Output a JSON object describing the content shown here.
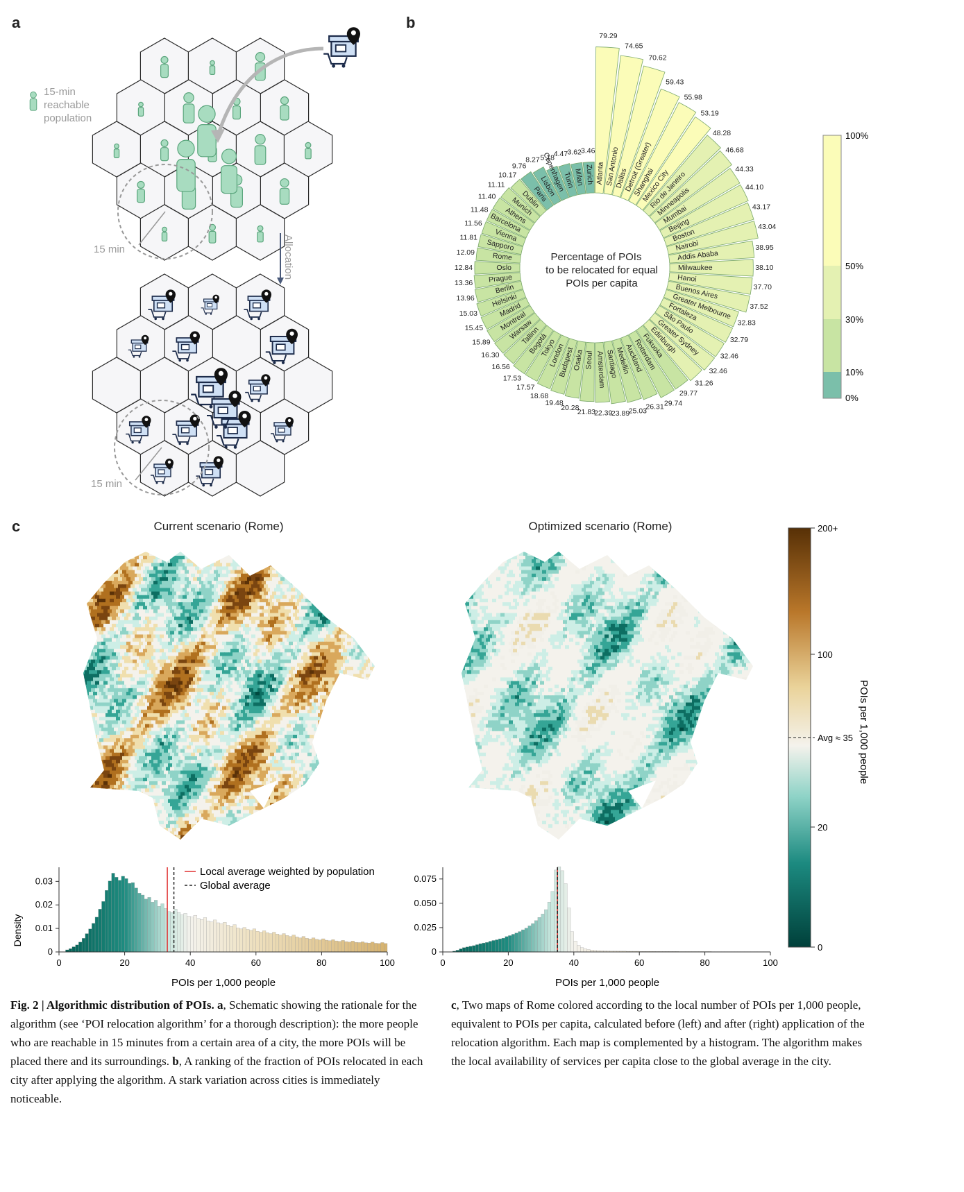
{
  "panel_labels": {
    "a": "a",
    "b": "b",
    "c": "c"
  },
  "panel_a": {
    "legend_label": [
      "15-min",
      "reachable",
      "population"
    ],
    "time_label_top": "15 min",
    "time_label_bottom": "15 min",
    "arrow_label": "Allocation",
    "colors": {
      "person": "#a8dcc0",
      "person_stroke": "#5aa57c",
      "store": "#cfe0f5",
      "store_stroke": "#1c2b4a",
      "hex_fill": "#f6f6f8",
      "hex_stroke": "#2a2a2a"
    }
  },
  "panel_b": {
    "center_text": [
      "Percentage of POIs",
      "to be relocated for equal",
      "POIs per capita"
    ],
    "colorbar_labels": [
      "100%",
      "50%",
      "30%",
      "10%",
      "0%"
    ],
    "colors": {
      "band_0_10": "#7bbfaa",
      "band_10_30": "#c8e4a3",
      "band_30_50": "#e4f1b2",
      "band_50_100": "#fbfcb8"
    }
  },
  "chart_data": [
    {
      "type": "bar",
      "layout": "circular",
      "categories": [
        "Atlanta",
        "San Antonio",
        "Dallas",
        "Detroit (Greater)",
        "Shanghai",
        "Mexico City",
        "Rio de Janeiro",
        "Minneapolis",
        "Mumbai",
        "Beijing",
        "Boston",
        "Nairobi",
        "Addis Ababa",
        "Milwaukee",
        "Hanoi",
        "Buenos Aires",
        "Greater Melbourne",
        "Fortaleza",
        "São Paulo",
        "Greater Sydney",
        "Edinburgh",
        "Fukuoka",
        "Rotterdam",
        "Auckland",
        "Medellín",
        "Santiago",
        "Amsterdam",
        "Seoul",
        "Osaka",
        "Budapest",
        "London",
        "Tokyo",
        "Bogotá",
        "Tallinn",
        "Warsaw",
        "Montreal",
        "Madrid",
        "Helsinki",
        "Berlin",
        "Prague",
        "Oslo",
        "Rome",
        "Sapporo",
        "Vienna",
        "Barcelona",
        "Athens",
        "Munich",
        "Dublin",
        "Paris",
        "Lisbon",
        "Copenhagen",
        "Turin",
        "Milan",
        "Zurich"
      ],
      "values": [
        79.29,
        74.65,
        70.62,
        59.43,
        55.98,
        53.19,
        48.28,
        46.68,
        44.33,
        44.1,
        43.17,
        43.04,
        38.95,
        38.1,
        37.7,
        37.52,
        32.83,
        32.79,
        32.46,
        32.46,
        31.26,
        29.77,
        29.74,
        26.31,
        25.03,
        23.89,
        22.39,
        21.83,
        20.28,
        19.48,
        18.68,
        17.57,
        17.53,
        16.56,
        16.3,
        15.89,
        15.45,
        15.03,
        13.96,
        13.36,
        12.84,
        12.09,
        11.81,
        11.56,
        11.48,
        11.4,
        11.11,
        10.17,
        9.76,
        8.27,
        5.18,
        4.47,
        3.62,
        3.46
      ],
      "title": "Percentage of POIs to be relocated for equal POIs per capita",
      "color_scale": {
        "ticks": [
          "0%",
          "10%",
          "30%",
          "50%",
          "100%"
        ]
      }
    },
    {
      "type": "heatmap",
      "title": "Current scenario (Rome)",
      "colorbar_label": "POIs per 1,000 people",
      "colorbar_ticks": [
        "0",
        "20",
        "Avg ≈ 35",
        "100",
        "200+"
      ]
    },
    {
      "type": "heatmap",
      "title": "Optimized scenario (Rome)",
      "colorbar_label": "POIs per 1,000 people",
      "colorbar_ticks": [
        "0",
        "20",
        "Avg ≈ 35",
        "100",
        "200+"
      ]
    },
    {
      "type": "bar",
      "subtype": "histogram",
      "xlabel": "POIs per 1,000 people",
      "ylabel": "Density",
      "xlim": [
        0,
        100
      ],
      "ylim": [
        0,
        0.036
      ],
      "x_ticks": [
        "0",
        "20",
        "40",
        "60",
        "80",
        "100"
      ],
      "y_ticks": [
        "0",
        "0.01",
        "0.02",
        "0.03"
      ],
      "legend": [
        "Local average weighted by population",
        "Global average"
      ],
      "local_average": 33,
      "global_average": 35,
      "bin_width": 1,
      "values": [
        0,
        0,
        0.0009,
        0.0014,
        0.0022,
        0.003,
        0.0042,
        0.0058,
        0.0078,
        0.0098,
        0.0122,
        0.0148,
        0.0182,
        0.0215,
        0.0262,
        0.0302,
        0.0335,
        0.0318,
        0.0305,
        0.0322,
        0.0312,
        0.0292,
        0.0295,
        0.0272,
        0.025,
        0.0242,
        0.0225,
        0.0232,
        0.0212,
        0.022,
        0.0194,
        0.0205,
        0.0185,
        0.0172,
        0.0168,
        0.0182,
        0.0168,
        0.0158,
        0.0164,
        0.0152,
        0.0148,
        0.0156,
        0.0142,
        0.0138,
        0.0146,
        0.0132,
        0.0128,
        0.0136,
        0.0124,
        0.012,
        0.0126,
        0.0114,
        0.0108,
        0.0116,
        0.0102,
        0.0098,
        0.0104,
        0.0096,
        0.0092,
        0.0098,
        0.0088,
        0.0084,
        0.009,
        0.0082,
        0.0078,
        0.0084,
        0.0076,
        0.0072,
        0.0078,
        0.007,
        0.0066,
        0.0072,
        0.0064,
        0.006,
        0.0066,
        0.0058,
        0.0055,
        0.006,
        0.0054,
        0.0051,
        0.0056,
        0.005,
        0.0048,
        0.0052,
        0.0047,
        0.0045,
        0.0049,
        0.0044,
        0.0042,
        0.0046,
        0.0041,
        0.004,
        0.0043,
        0.0039,
        0.0038,
        0.0042,
        0.0037,
        0.0036,
        0.004,
        0.0036
      ]
    },
    {
      "type": "bar",
      "subtype": "histogram",
      "xlabel": "POIs per 1,000 people",
      "xlim": [
        0,
        100
      ],
      "ylim": [
        0,
        0.087
      ],
      "x_ticks": [
        "0",
        "20",
        "40",
        "60",
        "80",
        "100"
      ],
      "y_ticks": [
        "0",
        "0.025",
        "0.050",
        "0.075"
      ],
      "local_average": 35,
      "global_average": 35,
      "bin_width": 1,
      "values": [
        0,
        0,
        0,
        0.0008,
        0.0018,
        0.0032,
        0.0045,
        0.0052,
        0.0058,
        0.0065,
        0.0075,
        0.0085,
        0.0092,
        0.0098,
        0.011,
        0.0118,
        0.0125,
        0.0135,
        0.0142,
        0.0158,
        0.0168,
        0.0182,
        0.0195,
        0.021,
        0.0228,
        0.0245,
        0.0268,
        0.0292,
        0.0322,
        0.0355,
        0.039,
        0.0435,
        0.0512,
        0.0622,
        0.0842,
        0.0875,
        0.0835,
        0.0702,
        0.0452,
        0.0208,
        0.0112,
        0.0068,
        0.0045,
        0.0032,
        0.0025,
        0.002,
        0.0016,
        0.0014,
        0.0012,
        0.0011,
        0.001,
        0.0009,
        0.0009,
        0.0008,
        0.0008,
        0.0008,
        0.0007,
        0.0007,
        0.0007,
        0.0007,
        0.0006,
        0.0006,
        0.0006,
        0.0006,
        0.0006,
        0.0005,
        0.0005,
        0.0005,
        0.0005,
        0.0005,
        0.0005,
        0.0005,
        0.0004,
        0.0004,
        0.0004,
        0.0004,
        0.0004,
        0.0004,
        0.0004,
        0.0004,
        0.0004,
        0.0004,
        0.0003,
        0.0003,
        0.0003,
        0.0003,
        0.0003,
        0.0003,
        0.0003,
        0.0003,
        0.0003,
        0.0003,
        0.0003,
        0.0003,
        0.0003,
        0.0003,
        0.0003,
        0.0003,
        0.0003,
        0.0003
      ]
    }
  ],
  "caption": {
    "fig_label": "Fig. 2 | Algorithmic distribution of POIs.",
    "a_label": "a",
    "a_text": ", Schematic showing the rationale for the algorithm (see ‘POI relocation algorithm’ for a thorough description): the more people who are reachable in 15 minutes from a certain area of a city, the more POIs will be placed there and its surroundings.",
    "b_label": "b",
    "b_text": ", A ranking of the fraction of POIs relocated in each city after applying the algorithm. A stark variation across cities is immediately noticeable.",
    "c_label": "c",
    "c_text": ", Two maps of Rome colored according to the local number of POIs per 1,000 people, equivalent to POIs per capita, calculated before (left) and after (right) application of the relocation algorithm. Each map is complemented by a histogram. The algorithm makes the local availability of services per capita close to the global average in the city."
  }
}
